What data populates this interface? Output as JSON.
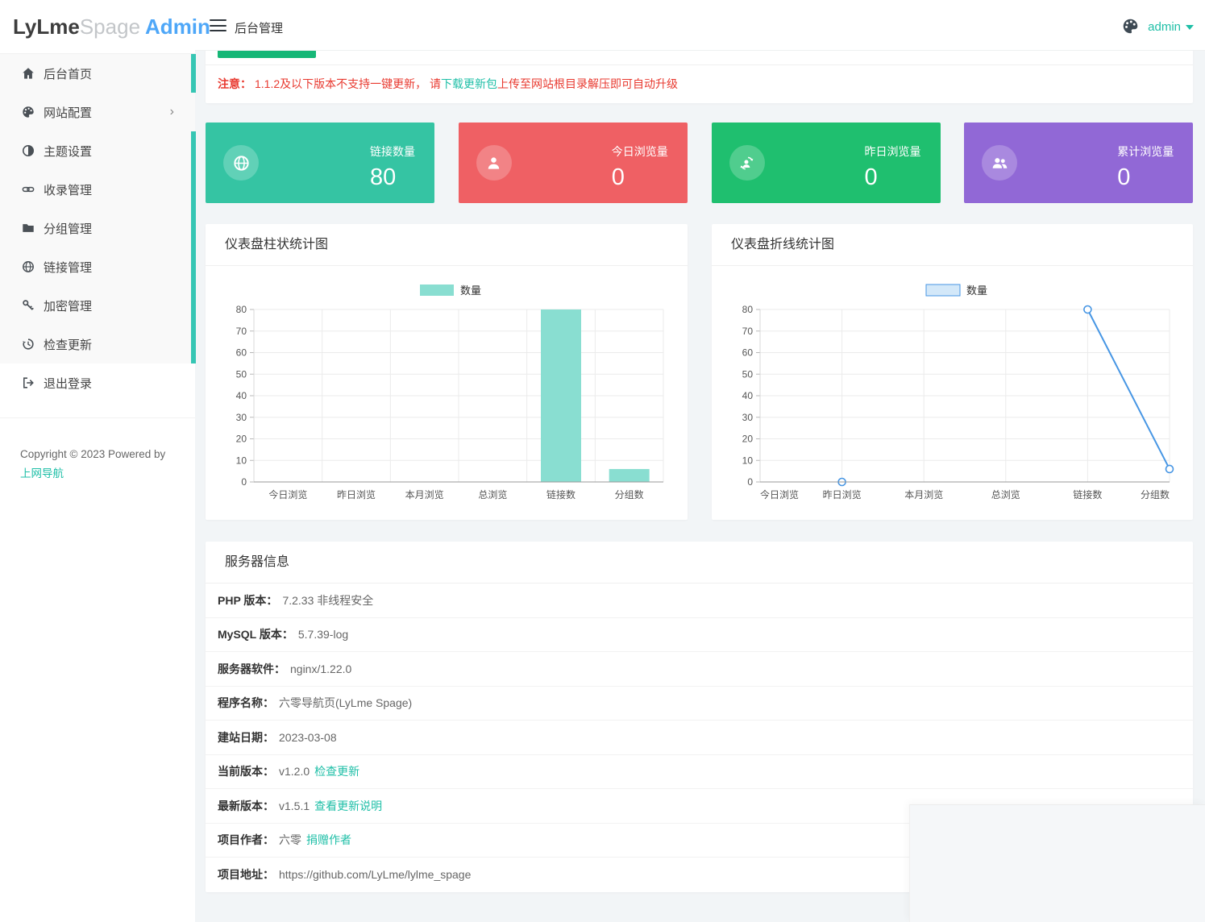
{
  "logo": {
    "part1": "LyLme",
    "part2": "Spage",
    "part3": "Admin"
  },
  "header": {
    "title": "后台管理",
    "user": "admin"
  },
  "sidebar": {
    "items": [
      {
        "label": "后台首页",
        "icon": "home-icon",
        "has_children": false
      },
      {
        "label": "网站配置",
        "icon": "palette-icon",
        "has_children": true
      },
      {
        "label": "主题设置",
        "icon": "contrast-icon",
        "has_children": false
      },
      {
        "label": "收录管理",
        "icon": "link-icon",
        "has_children": false
      },
      {
        "label": "分组管理",
        "icon": "folder-icon",
        "has_children": false
      },
      {
        "label": "链接管理",
        "icon": "globe-icon",
        "has_children": false
      },
      {
        "label": "加密管理",
        "icon": "key-icon",
        "has_children": false
      },
      {
        "label": "检查更新",
        "icon": "history-icon",
        "has_children": false
      },
      {
        "label": "退出登录",
        "icon": "logout-icon",
        "has_children": false
      }
    ],
    "copyright": "Copyright © 2023 Powered by",
    "copyright_link": "上网导航"
  },
  "notice": {
    "bold": "注意：",
    "pre": "1.1.2及以下版本不支持一键更新， 请",
    "link": "下载更新包",
    "post": "上传至网站根目录解压即可自动升级"
  },
  "stats": [
    {
      "label": "链接数量",
      "value": "80",
      "color": "#35c4a3",
      "icon": "globe-icon"
    },
    {
      "label": "今日浏览量",
      "value": "0",
      "color": "#ef6064",
      "icon": "person-icon"
    },
    {
      "label": "昨日浏览量",
      "value": "0",
      "color": "#1fbf6f",
      "icon": "person-sync-icon"
    },
    {
      "label": "累计浏览量",
      "value": "0",
      "color": "#9168d6",
      "icon": "people-icon"
    }
  ],
  "chart_data": [
    {
      "type": "bar",
      "title": "仪表盘柱状统计图",
      "legend": "数量",
      "legend_position": "top-center",
      "categories": [
        "今日浏览",
        "昨日浏览",
        "本月浏览",
        "总浏览",
        "链接数",
        "分组数"
      ],
      "values": [
        0,
        0,
        0,
        0,
        80,
        6
      ],
      "ylim": [
        0,
        80
      ],
      "ytick": 10,
      "grid": true,
      "color": "#89ded1"
    },
    {
      "type": "line",
      "title": "仪表盘折线统计图",
      "legend": "数量",
      "legend_position": "top-center",
      "categories": [
        "今日浏览",
        "昨日浏览",
        "本月浏览",
        "总浏览",
        "链接数",
        "分组数"
      ],
      "values": [
        0,
        0,
        0,
        0,
        80,
        6
      ],
      "ylim": [
        0,
        80
      ],
      "ytick": 10,
      "grid": true,
      "boundary_gap": false,
      "color": "#4796e4",
      "legend_fill": "#d3e8f9",
      "visible_markers": [
        1,
        4,
        5
      ],
      "line_segments": [
        [
          4,
          5
        ]
      ]
    }
  ],
  "server": {
    "title": "服务器信息",
    "rows": [
      {
        "label": "PHP 版本：",
        "value": "7.2.33 非线程安全"
      },
      {
        "label": "MySQL 版本：",
        "value": "5.7.39-log"
      },
      {
        "label": "服务器软件：",
        "value": "nginx/1.22.0"
      },
      {
        "label": "程序名称：",
        "value": "六零导航页(LyLme Spage)"
      },
      {
        "label": "建站日期：",
        "value": "2023-03-08"
      },
      {
        "label": "当前版本：",
        "value": "v1.2.0",
        "link": "检查更新"
      },
      {
        "label": "最新版本：",
        "value": " v1.5.1",
        "link": "查看更新说明"
      },
      {
        "label": "项目作者：",
        "value": "六零",
        "link": "捐赠作者"
      },
      {
        "label": "项目地址：",
        "value": "https://github.com/LyLme/lylme_spage"
      }
    ]
  }
}
